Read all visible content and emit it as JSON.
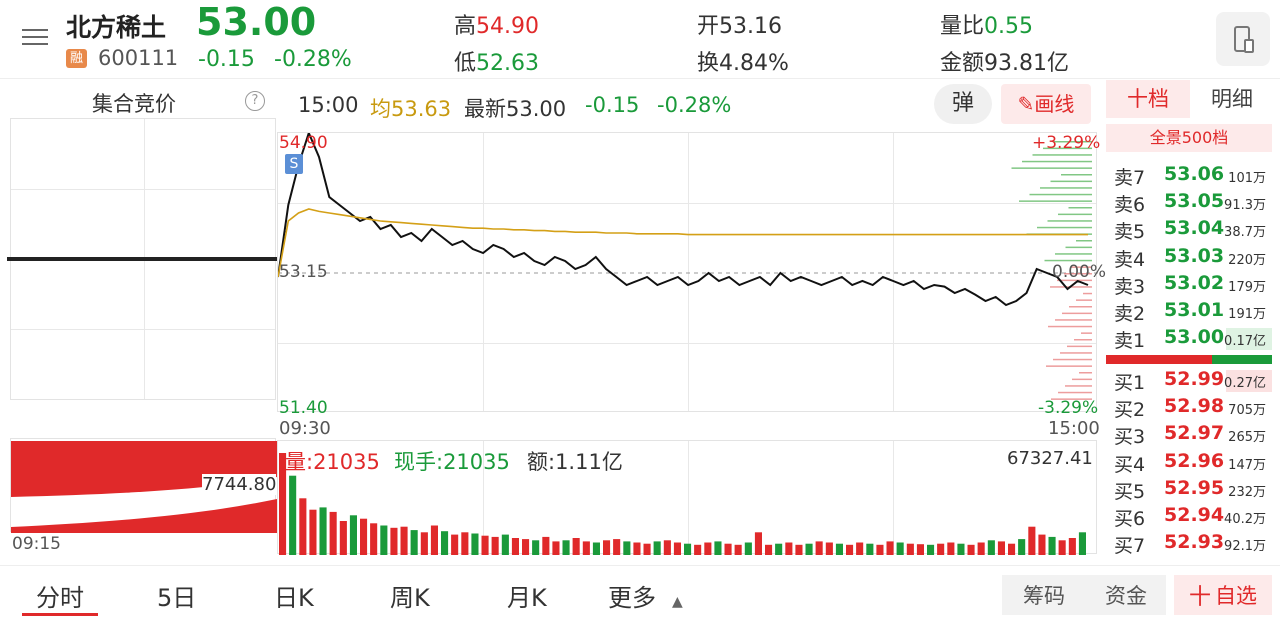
{
  "header": {
    "stock_name": "北方稀土",
    "price": "53.00",
    "margin_badge": "融",
    "code": "600111",
    "change": "-0.15",
    "change_pct": "-0.28%",
    "high_label": "高",
    "high": "54.90",
    "low_label": "低",
    "low": "52.63",
    "open_label": "开",
    "open": "53.16",
    "turnover_label": "换",
    "turnover": "4.84%",
    "vol_ratio_label": "量比",
    "vol_ratio": "0.55",
    "amount_label": "金额",
    "amount": "93.81亿"
  },
  "auction": {
    "title": "集合竞价",
    "help": "?",
    "time_start": "09:15",
    "value": "7744.80"
  },
  "chart_bar": {
    "time": "15:00",
    "avg_label": "均53.63",
    "latest_label": "最新53.00",
    "change": "-0.15",
    "change_pct": "-0.28%",
    "popup_button": "弹",
    "draw_button": "画线"
  },
  "colors": {
    "up": "#e0292a",
    "down": "#1a9a3a",
    "avg_line": "#d4a017",
    "price_line": "#111111"
  },
  "chart_data": {
    "type": "line",
    "x_start": "09:30",
    "x_end": "15:00",
    "y_high_label": "54.90",
    "y_low_label": "51.40",
    "y_ref_label": "53.15",
    "pct_top": "+3.29%",
    "pct_zero": "0.00%",
    "pct_bottom": "-3.29%",
    "ylim": [
      51.4,
      54.9
    ],
    "reference": 53.15,
    "marker_label": "S",
    "series": [
      {
        "values": [
          53.1,
          54.0,
          54.5,
          54.9,
          54.6,
          54.1,
          54.0,
          53.9,
          53.8,
          53.85,
          53.7,
          53.75,
          53.6,
          53.65,
          53.55,
          53.7,
          53.6,
          53.5,
          53.55,
          53.45,
          53.4,
          53.5,
          53.45,
          53.35,
          53.4,
          53.3,
          53.25,
          53.35,
          53.3,
          53.2,
          53.25,
          53.35,
          53.2,
          53.1,
          53.0,
          53.05,
          53.1,
          53.0,
          53.05,
          53.1,
          53.0,
          53.05,
          53.15,
          53.05,
          53.1,
          53.0,
          53.05,
          53.1,
          53.0,
          53.15,
          53.05,
          53.1,
          53.05,
          53.0,
          53.05,
          53.1,
          53.0,
          53.05,
          53.0,
          53.1,
          53.05,
          53.0,
          53.05,
          52.95,
          53.0,
          52.98,
          52.9,
          52.95,
          52.88,
          52.8,
          52.85,
          52.75,
          52.8,
          52.9,
          53.2,
          53.15,
          53.1,
          52.95,
          53.05,
          53.0
        ]
      },
      {
        "values": [
          53.1,
          53.8,
          53.9,
          53.95,
          53.92,
          53.9,
          53.88,
          53.86,
          53.84,
          53.82,
          53.8,
          53.79,
          53.78,
          53.77,
          53.76,
          53.75,
          53.74,
          53.73,
          53.72,
          53.71,
          53.71,
          53.7,
          53.7,
          53.69,
          53.69,
          53.68,
          53.68,
          53.67,
          53.67,
          53.66,
          53.66,
          53.66,
          53.65,
          53.65,
          53.65,
          53.64,
          53.64,
          53.64,
          53.64,
          53.64,
          53.63,
          53.63,
          53.63,
          53.63,
          53.63,
          53.63,
          53.63,
          53.63,
          53.63,
          53.63,
          53.63,
          53.63,
          53.63,
          53.63,
          53.63,
          53.63,
          53.63,
          53.63,
          53.63,
          53.63,
          53.63,
          53.63,
          53.63,
          53.63,
          53.63,
          53.63,
          53.63,
          53.63,
          53.63,
          53.63,
          53.63,
          53.63,
          53.63,
          53.63,
          53.63,
          53.63,
          53.63,
          53.63,
          53.63,
          53.63
        ]
      }
    ]
  },
  "volume": {
    "vol_label": "量:21035",
    "cur_label": "现手:21035",
    "amt_label": "额:1.11亿",
    "max_label": "67327.41",
    "values": [
      900,
      700,
      500,
      400,
      420,
      380,
      300,
      350,
      320,
      280,
      260,
      240,
      250,
      220,
      200,
      260,
      210,
      180,
      200,
      190,
      170,
      160,
      180,
      150,
      140,
      130,
      160,
      120,
      130,
      150,
      120,
      110,
      130,
      140,
      120,
      110,
      100,
      120,
      130,
      110,
      100,
      90,
      110,
      120,
      100,
      90,
      110,
      200,
      90,
      100,
      110,
      90,
      100,
      120,
      110,
      100,
      90,
      110,
      100,
      90,
      120,
      110,
      100,
      95,
      90,
      100,
      110,
      100,
      90,
      110,
      130,
      120,
      100,
      140,
      250,
      180,
      160,
      130,
      150,
      200
    ]
  },
  "orderbook": {
    "tab_level10": "十档",
    "tab_detail": "明细",
    "full_depth": "全景500档",
    "asks": [
      {
        "label": "卖7",
        "price": "53.06",
        "vol": "101万"
      },
      {
        "label": "卖6",
        "price": "53.05",
        "vol": "91.3万"
      },
      {
        "label": "卖5",
        "price": "53.04",
        "vol": "38.7万"
      },
      {
        "label": "卖4",
        "price": "53.03",
        "vol": "220万"
      },
      {
        "label": "卖3",
        "price": "53.02",
        "vol": "179万"
      },
      {
        "label": "卖2",
        "price": "53.01",
        "vol": "191万"
      },
      {
        "label": "卖1",
        "price": "53.00",
        "vol": "0.17亿"
      }
    ],
    "bids": [
      {
        "label": "买1",
        "price": "52.99",
        "vol": "0.27亿"
      },
      {
        "label": "买2",
        "price": "52.98",
        "vol": "705万"
      },
      {
        "label": "买3",
        "price": "52.97",
        "vol": "265万"
      },
      {
        "label": "买4",
        "price": "52.96",
        "vol": "147万"
      },
      {
        "label": "买5",
        "price": "52.95",
        "vol": "232万"
      },
      {
        "label": "买6",
        "price": "52.94",
        "vol": "40.2万"
      },
      {
        "label": "买7",
        "price": "52.93",
        "vol": "92.1万"
      }
    ]
  },
  "bottom_tabs": {
    "t1": "分时",
    "t2": "5日",
    "t3": "日K",
    "t4": "周K",
    "t5": "月K",
    "t6": "更多",
    "chips": "筹码",
    "funds": "资金",
    "add_watch": "自选",
    "add_icon": "十"
  }
}
